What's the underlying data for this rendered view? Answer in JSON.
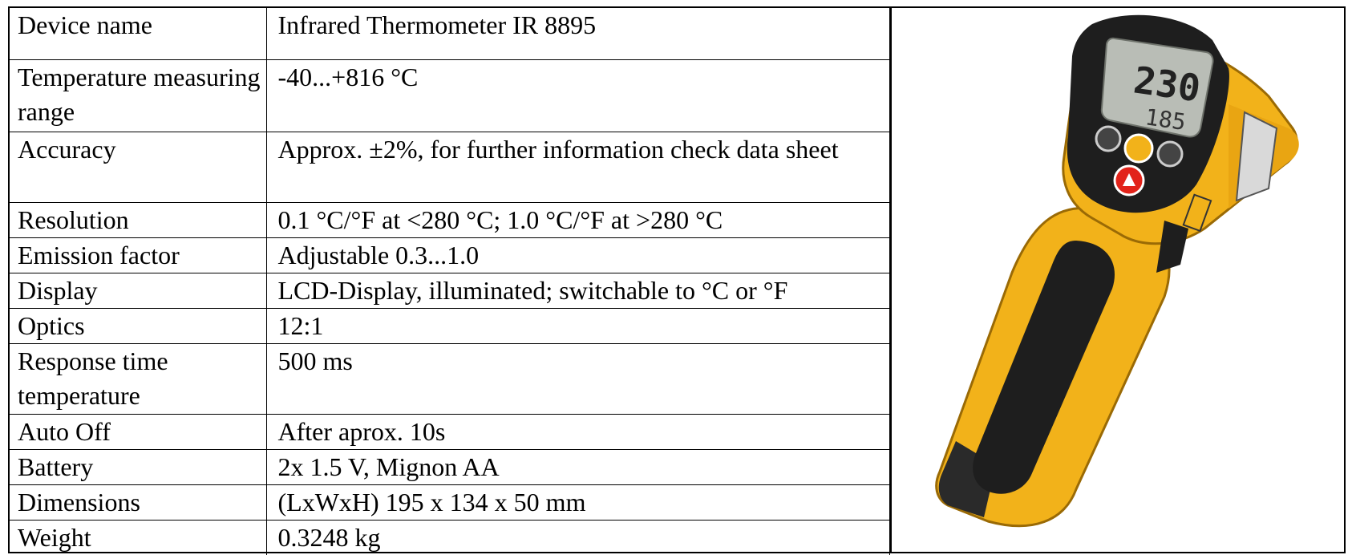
{
  "specs": [
    {
      "label": "Device name",
      "value": "Infrared Thermometer IR 8895"
    },
    {
      "label": "Temperature measuring range",
      "value": "-40...+816 °C"
    },
    {
      "label": "Accuracy",
      "value": "Approx. ±2%, for further information check data sheet"
    },
    {
      "label": "Resolution",
      "value": "0.1 °C/°F at <280 °C; 1.0 °C/°F at >280 °C"
    },
    {
      "label": "Emission factor",
      "value": "Adjustable 0.3...1.0"
    },
    {
      "label": "Display",
      "value": "LCD-Display, illuminated; switchable to °C or °F"
    },
    {
      "label": "Optics",
      "value": "12:1"
    },
    {
      "label": "Response time temperature",
      "value": "500 ms"
    },
    {
      "label": "Auto Off",
      "value": "After aprox. 10s"
    },
    {
      "label": "Battery",
      "value": "2x 1.5 V, Mignon AA"
    },
    {
      "label": "Dimensions",
      "value": "(LxWxH) 195 x 134 x 50 mm"
    },
    {
      "label": "Weight",
      "value": "0.3248 kg"
    }
  ],
  "product_image": {
    "icon": "infrared-thermometer-icon",
    "colors": {
      "body": "#F2B21A",
      "grip": "#1E1E1E",
      "lcd": "#B9BDB6",
      "trigger": "#E2231A"
    }
  }
}
